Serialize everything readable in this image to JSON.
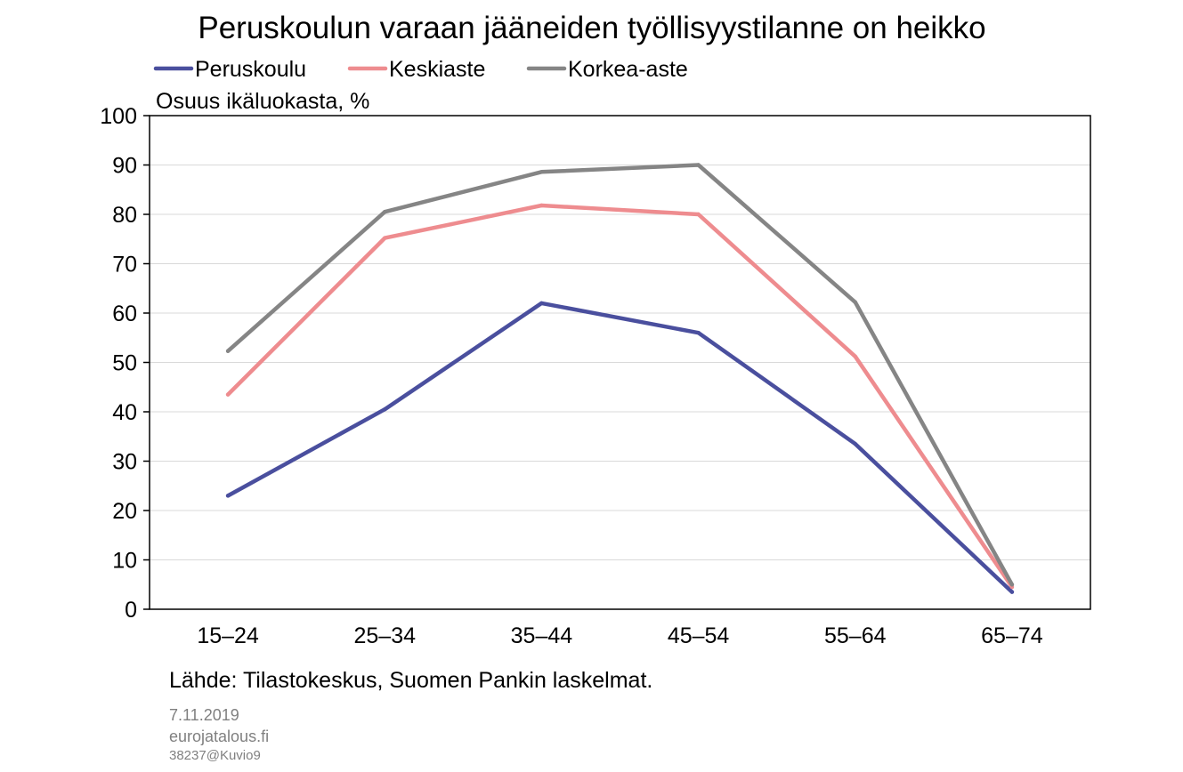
{
  "chart_data": {
    "type": "line",
    "title": "Peruskoulun varaan jääneiden työllisyystilanne on heikko",
    "ylabel": "Osuus ikäluokasta, %",
    "xlabel": "",
    "categories": [
      "15–24",
      "25–34",
      "35–44",
      "45–54",
      "55–64",
      "65–74"
    ],
    "ylim": [
      0,
      100
    ],
    "yticks": [
      0,
      10,
      20,
      30,
      40,
      50,
      60,
      70,
      80,
      90,
      100
    ],
    "grid": true,
    "legend_position": "top-left",
    "series": [
      {
        "name": "Peruskoulu",
        "color": "#4a4f9e",
        "values": [
          23,
          40.5,
          62,
          56,
          33.5,
          3.5
        ]
      },
      {
        "name": "Keskiaste",
        "color": "#ee8c8f",
        "values": [
          43.5,
          75.2,
          81.8,
          80,
          51.2,
          4.5
        ]
      },
      {
        "name": "Korkea-aste",
        "color": "#858585",
        "values": [
          52.3,
          80.5,
          88.6,
          90,
          62.2,
          5
        ]
      }
    ]
  },
  "source": "Lähde: Tilastokeskus, Suomen Pankin laskelmat.",
  "footer": {
    "date": "7.11.2019",
    "site": "eurojatalous.fi",
    "code": "38237@Kuvio9"
  }
}
